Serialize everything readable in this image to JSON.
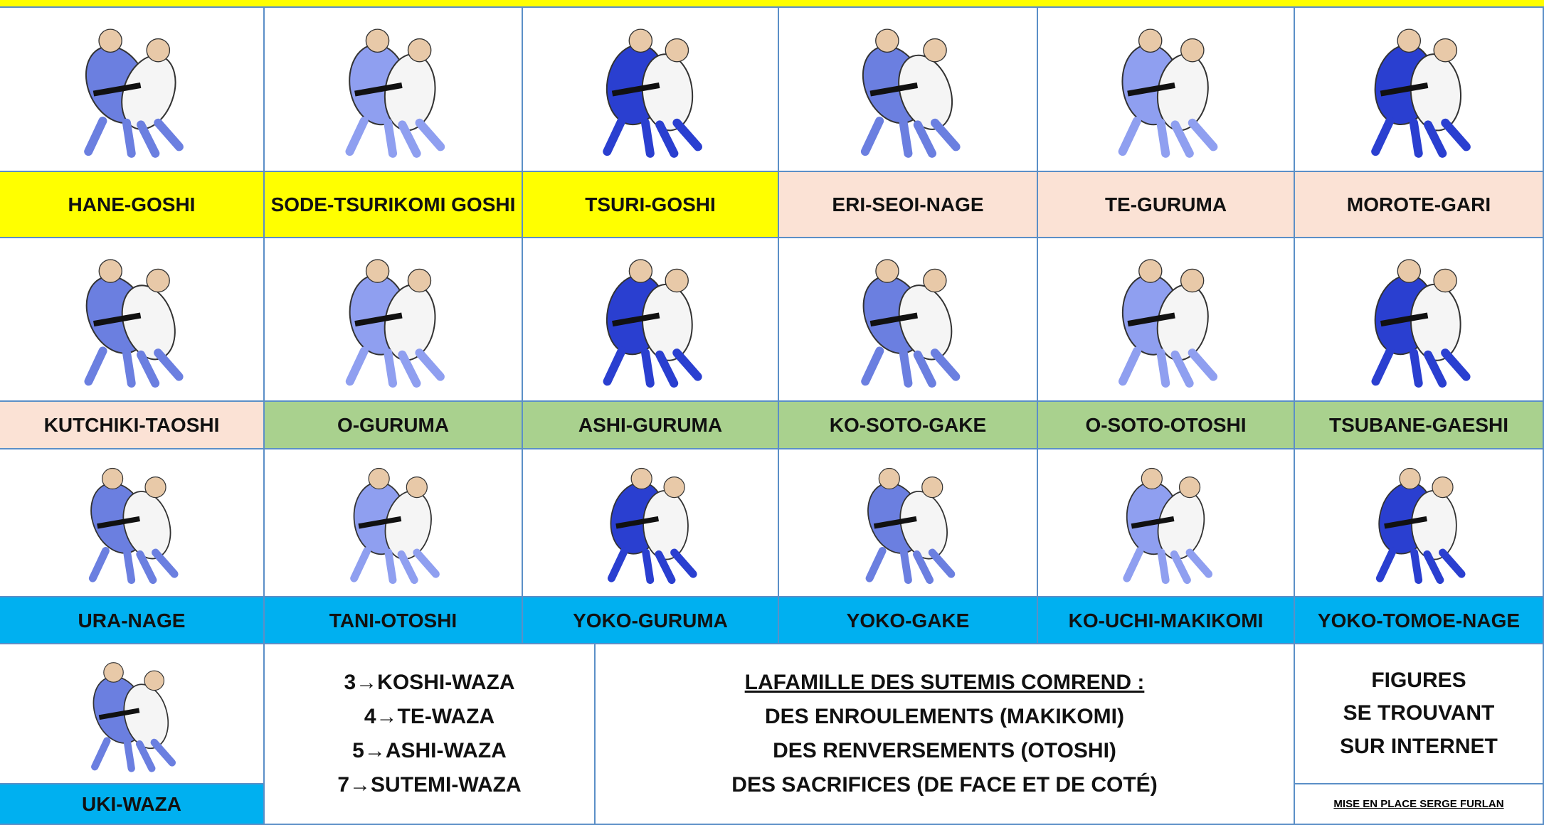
{
  "techniques": [
    {
      "name": "HANE-GOSHI",
      "color": "#ffff00"
    },
    {
      "name": "SODE-TSURIKOMI GOSHI",
      "color": "#ffff00"
    },
    {
      "name": "TSURI-GOSHI",
      "color": "#ffff00"
    },
    {
      "name": "ERI-SEOI-NAGE",
      "color": "#fbe2d5"
    },
    {
      "name": "TE-GURUMA",
      "color": "#fbe2d5"
    },
    {
      "name": "MOROTE-GARI",
      "color": "#fbe2d5"
    },
    {
      "name": "KUTCHIKI-TAOSHI",
      "color": "#fbe2d5"
    },
    {
      "name": "O-GURUMA",
      "color": "#a9d18e"
    },
    {
      "name": "ASHI-GURUMA",
      "color": "#a9d18e"
    },
    {
      "name": "KO-SOTO-GAKE",
      "color": "#a9d18e"
    },
    {
      "name": "O-SOTO-OTOSHI",
      "color": "#a9d18e"
    },
    {
      "name": "TSUBANE-GAESHI",
      "color": "#a9d18e"
    },
    {
      "name": "URA-NAGE",
      "color": "#00b0f0"
    },
    {
      "name": "TANI-OTOSHI",
      "color": "#00b0f0"
    },
    {
      "name": "YOKO-GURUMA",
      "color": "#00b0f0"
    },
    {
      "name": "YOKO-GAKE",
      "color": "#00b0f0"
    },
    {
      "name": "KO-UCHI-MAKIKOMI",
      "color": "#00b0f0"
    },
    {
      "name": "YOKO-TOMOE-NAGE",
      "color": "#00b0f0"
    },
    {
      "name": "UKI-WAZA",
      "color": "#00b0f0"
    }
  ],
  "legend": {
    "items": [
      "3→KOSHI-WAZA",
      "4→TE-WAZA",
      "5→ASHI-WAZA",
      "7→SUTEMI-WAZA"
    ]
  },
  "sutemi": {
    "heading": "LAFAMILLE DES SUTEMIS COMREND :",
    "lines": [
      "DES ENROULEMENTS (MAKIKOMI)",
      "DES RENVERSEMENTS (OTOSHI)",
      "DES SACRIFICES (DE FACE ET DE COTÉ)"
    ]
  },
  "credits": {
    "figures": [
      "FIGURES",
      "SE TROUVANT",
      "SUR INTERNET"
    ],
    "author": "MISE EN PLACE SERGE FURLAN"
  }
}
